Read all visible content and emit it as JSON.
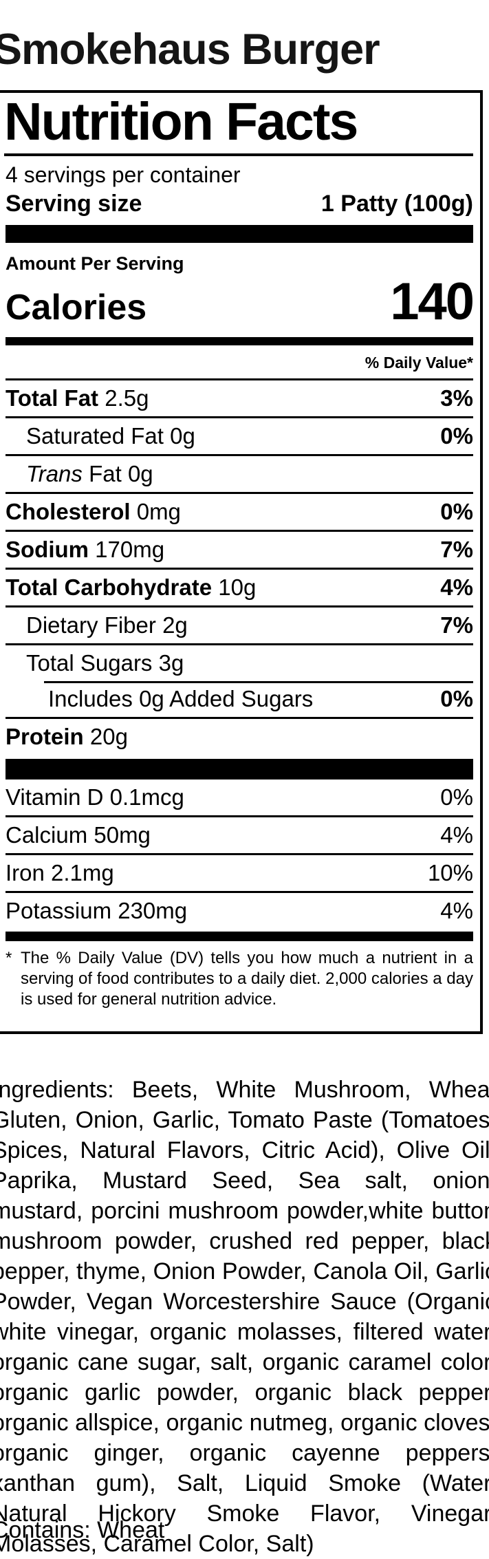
{
  "page": {
    "title": "Smokehaus Burger"
  },
  "label": {
    "title": "Nutrition Facts",
    "servings_per_container": "4 servings per container",
    "serving_size_label": "Serving size",
    "serving_size_value": "1 Patty (100g)",
    "amount_per_serving": "Amount Per Serving",
    "calories_label": "Calories",
    "calories_value": "140",
    "daily_value_header": "% Daily Value*",
    "rows": [
      {
        "name": "Total Fat",
        "amount": "2.5g",
        "dv": "3%"
      },
      {
        "name": "Saturated Fat",
        "amount": "0g",
        "dv": "0%"
      },
      {
        "name_italic": "Trans",
        "name": "Fat",
        "amount": "0g",
        "dv": ""
      },
      {
        "name": "Cholesterol",
        "amount": "0mg",
        "dv": "0%"
      },
      {
        "name": "Sodium",
        "amount": "170mg",
        "dv": "7%"
      },
      {
        "name": "Total Carbohydrate",
        "amount": "10g",
        "dv": "4%"
      },
      {
        "name": "Dietary Fiber",
        "amount": "2g",
        "dv": "7%"
      },
      {
        "name": "Total Sugars",
        "amount": "3g",
        "dv": ""
      },
      {
        "name": "Includes 0g Added Sugars",
        "amount": "",
        "dv": "0%"
      },
      {
        "name": "Protein",
        "amount": "20g",
        "dv": ""
      }
    ],
    "vitamins": [
      {
        "name": "Vitamin D 0.1mcg",
        "dv": "0%"
      },
      {
        "name": "Calcium 50mg",
        "dv": "4%"
      },
      {
        "name": "Iron 2.1mg",
        "dv": "10%"
      },
      {
        "name": "Potassium 230mg",
        "dv": "4%"
      }
    ],
    "footnote_marker": "*",
    "footnote": "The % Daily Value (DV) tells you how much a nutrient in a serving of food contributes to a daily diet. 2,000 calories a day is used for general nutrition advice."
  },
  "ingredients": {
    "text": "Ingredients: Beets, White Mushroom, Wheat Gluten, Onion, Garlic, Tomato Paste (Tomatoes, Spices, Natural Flavors, Citric Acid), Olive Oil, Paprika, Mustard Seed, Sea salt, onion, mustard, porcini mushroom powder,white button mushroom powder, crushed red pepper, black pepper, thyme, Onion Powder, Canola Oil, Garlic Powder, Vegan Worcestershire Sauce (Organic white vinegar, organic molasses, filtered water, organic cane sugar, salt, organic caramel color, organic garlic powder, organic black pepper, organic allspice, organic nutmeg, organic cloves, organic ginger, organic cayenne peppers, xanthan gum), Salt, Liquid Smoke (Water, Natural Hickory Smoke Flavor, Vinegar, Molasses, Caramel Color, Salt)",
    "contains": "Contains: Wheat"
  }
}
